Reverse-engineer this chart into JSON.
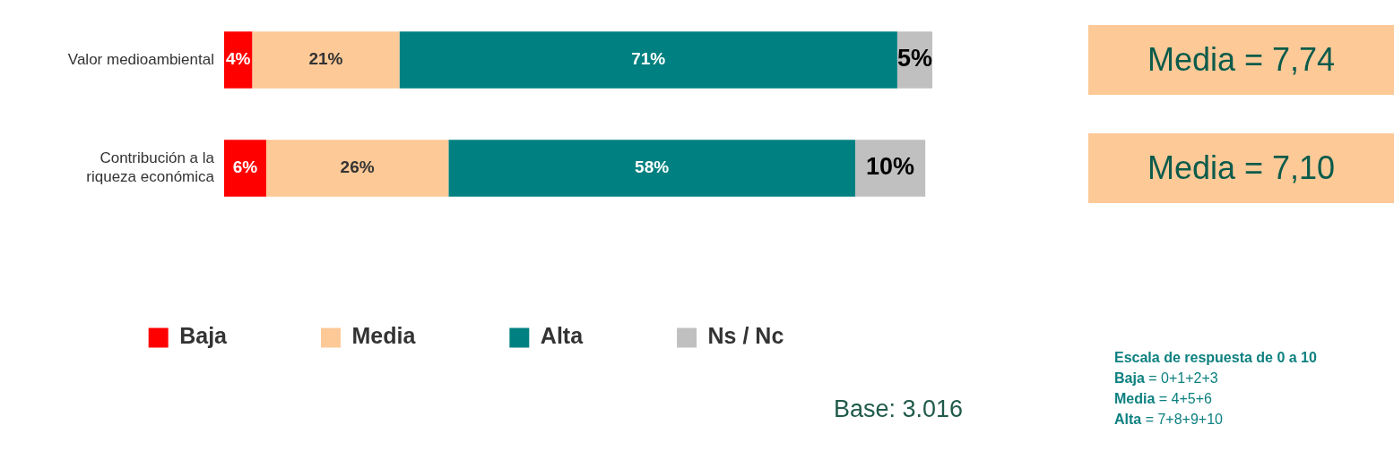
{
  "chart_data": {
    "type": "bar",
    "orientation": "horizontal",
    "stacked": true,
    "categories": [
      "Valor medioambiental",
      "Contribución a la\nriqueza económica"
    ],
    "series": [
      {
        "name": "Baja",
        "color": "#ff0000",
        "values": [
          4,
          6
        ],
        "value_labels": [
          "4%",
          "6%"
        ]
      },
      {
        "name": "Media",
        "color": "#fdc997",
        "values": [
          21,
          26
        ],
        "value_labels": [
          "21%",
          "26%"
        ]
      },
      {
        "name": "Alta",
        "color": "#008080",
        "values": [
          71,
          58
        ],
        "value_labels": [
          "71%",
          "58%"
        ]
      },
      {
        "name": "Ns / Nc",
        "color": "#c0c0c0",
        "values": [
          5,
          10
        ],
        "value_labels": [
          "5%",
          "10%"
        ]
      }
    ],
    "xlim": [
      0,
      101
    ],
    "tick_labels": "y",
    "grid": false,
    "legend": "bottom",
    "annotations": [
      "Media = 7,74",
      "Media = 7,10",
      "Base: 3.016",
      "Escala de respuesta de 0 a 10",
      "Baja = 0+1+2+3",
      "Media = 4+5+6",
      "Alta = 7+8+9+10"
    ]
  }
}
